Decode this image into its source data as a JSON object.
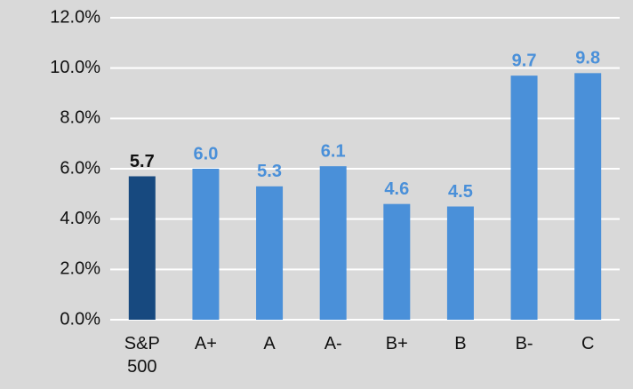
{
  "chart_data": {
    "type": "bar",
    "categories": [
      "S&P 500",
      "A+",
      "A",
      "A-",
      "B+",
      "B",
      "B-",
      "C"
    ],
    "values": [
      5.7,
      6.0,
      5.3,
      6.1,
      4.6,
      4.5,
      9.7,
      9.8
    ],
    "value_labels": [
      "5.7",
      "6.0",
      "5.3",
      "6.1",
      "4.6",
      "4.5",
      "9.7",
      "9.8"
    ],
    "colors": [
      "#17497f",
      "#4a90d9",
      "#4a90d9",
      "#4a90d9",
      "#4a90d9",
      "#4a90d9",
      "#4a90d9",
      "#4a90d9"
    ],
    "label_colors": [
      "#111111",
      "#4a90d9",
      "#4a90d9",
      "#4a90d9",
      "#4a90d9",
      "#4a90d9",
      "#4a90d9",
      "#4a90d9"
    ],
    "ylim": [
      0,
      12
    ],
    "yticks": [
      {
        "value": 0,
        "label": "0.0%"
      },
      {
        "value": 2,
        "label": "2.0%"
      },
      {
        "value": 4,
        "label": "4.0%"
      },
      {
        "value": 6,
        "label": "6.0%"
      },
      {
        "value": 8,
        "label": "8.0%"
      },
      {
        "value": 10,
        "label": "10.0%"
      },
      {
        "value": 12,
        "label": "12.0%"
      }
    ],
    "grid": true
  }
}
